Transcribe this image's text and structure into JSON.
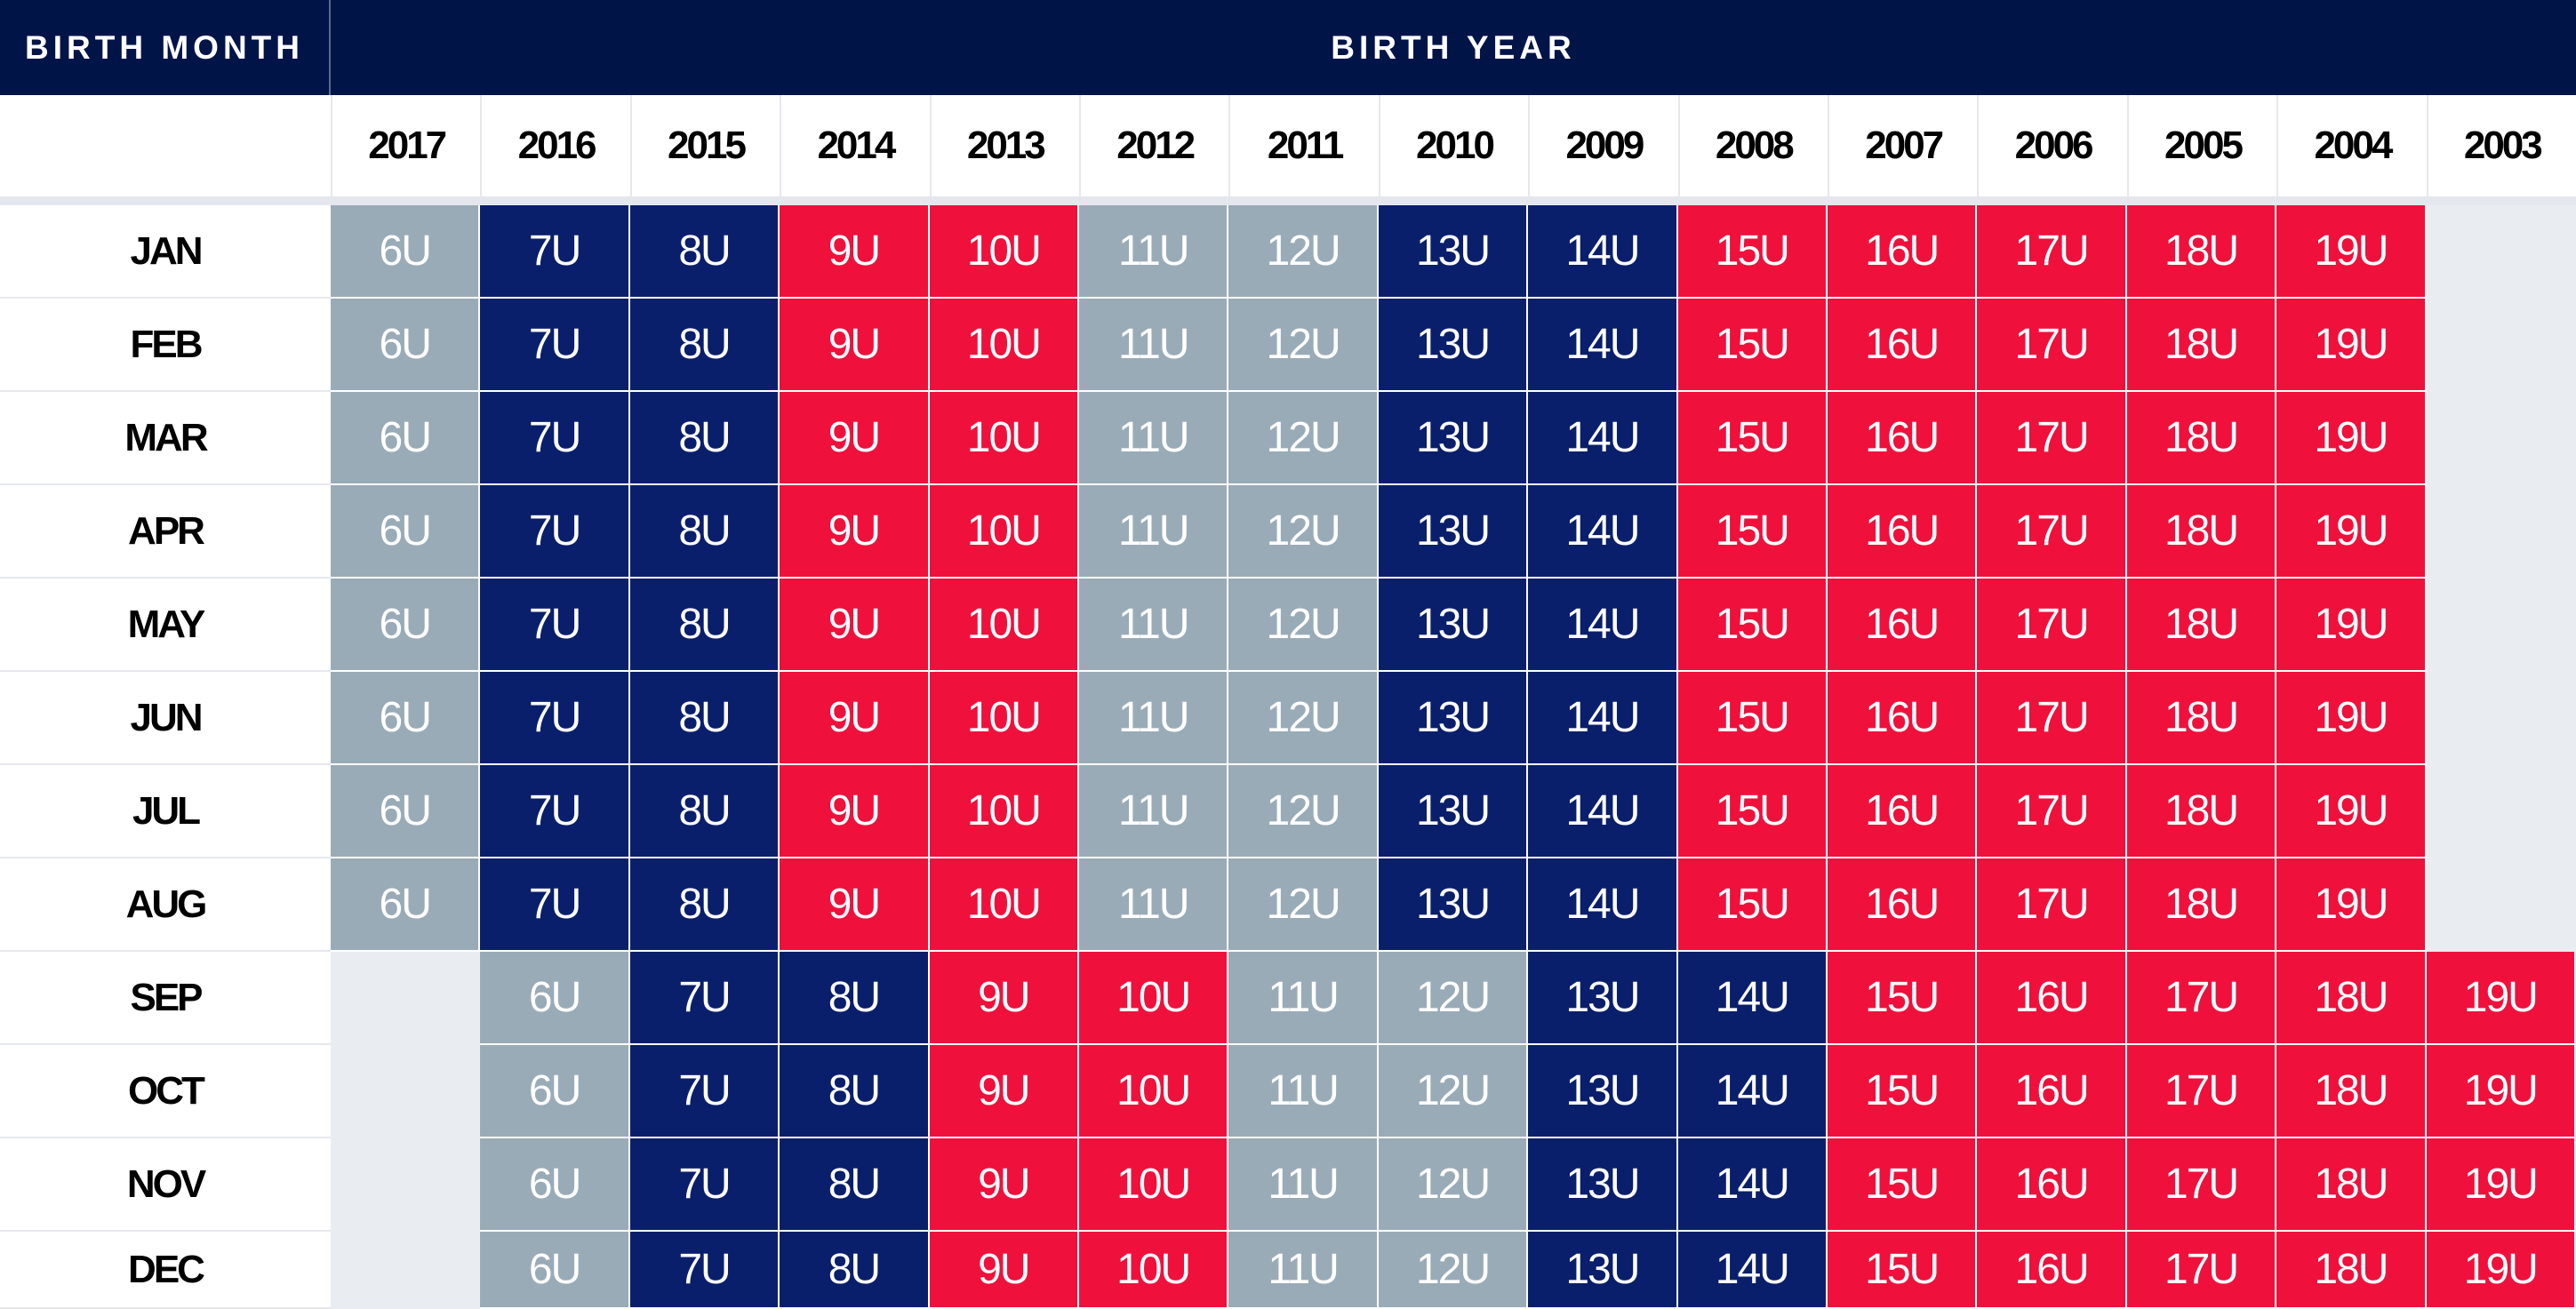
{
  "header": {
    "birth_month_label": "BIRTH MONTH",
    "birth_year_label": "BIRTH YEAR"
  },
  "years": [
    "2017",
    "2016",
    "2015",
    "2014",
    "2013",
    "2012",
    "2011",
    "2010",
    "2009",
    "2008",
    "2007",
    "2006",
    "2005",
    "2004",
    "2003"
  ],
  "months": [
    "JAN",
    "FEB",
    "MAR",
    "APR",
    "MAY",
    "JUN",
    "JUL",
    "AUG",
    "SEP",
    "OCT",
    "NOV",
    "DEC"
  ],
  "groups_jan_aug": [
    "6U",
    "7U",
    "8U",
    "9U",
    "10U",
    "11U",
    "12U",
    "13U",
    "14U",
    "15U",
    "16U",
    "17U",
    "18U",
    "19U",
    ""
  ],
  "groups_sep_dec": [
    "",
    "6U",
    "7U",
    "8U",
    "9U",
    "10U",
    "11U",
    "12U",
    "13U",
    "14U",
    "15U",
    "16U",
    "17U",
    "18U",
    "19U"
  ],
  "colors": {
    "header_navy": "#001448",
    "navy": "#0a1f6b",
    "red": "#f0103c",
    "gray": "#9aabb8",
    "empty": "#e9edf1"
  },
  "group_colors": {
    "6U": "gray",
    "7U": "navy",
    "8U": "navy",
    "9U": "red",
    "10U": "red",
    "11U": "gray",
    "12U": "gray",
    "13U": "navy",
    "14U": "navy",
    "15U": "red",
    "16U": "red",
    "17U": "red",
    "18U": "red",
    "19U": "red"
  }
}
